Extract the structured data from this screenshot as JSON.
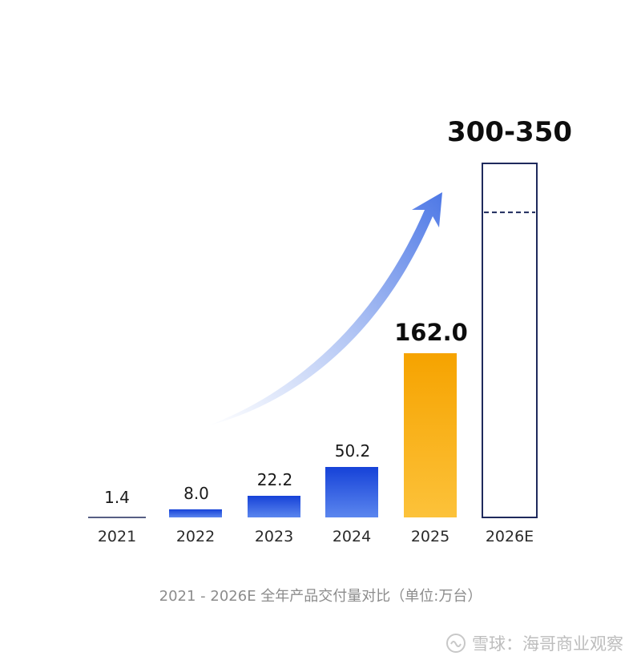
{
  "chart_data": {
    "type": "bar",
    "categories": [
      "2021",
      "2022",
      "2023",
      "2024",
      "2025",
      "2026E"
    ],
    "values": [
      1.4,
      8.0,
      22.2,
      50.2,
      162.0,
      null
    ],
    "value_labels": [
      "1.4",
      "8.0",
      "22.2",
      "50.2",
      "162.0",
      "300-350"
    ],
    "range_2026E": [
      300,
      350
    ],
    "bar_colors": [
      "#1a3fd6",
      "#1a3fd6",
      "#1a3fd6",
      "#1a3fd6",
      "#f5a300",
      "#ffffff"
    ],
    "outline_color": "#1f2a5c",
    "arrow_color": "#5b82e8",
    "title": "",
    "xlabel": "",
    "ylabel": ""
  },
  "caption": "2021 - 2026E 全年产品交付量对比（单位:万台）",
  "watermark": "雪球：海哥商业观察"
}
